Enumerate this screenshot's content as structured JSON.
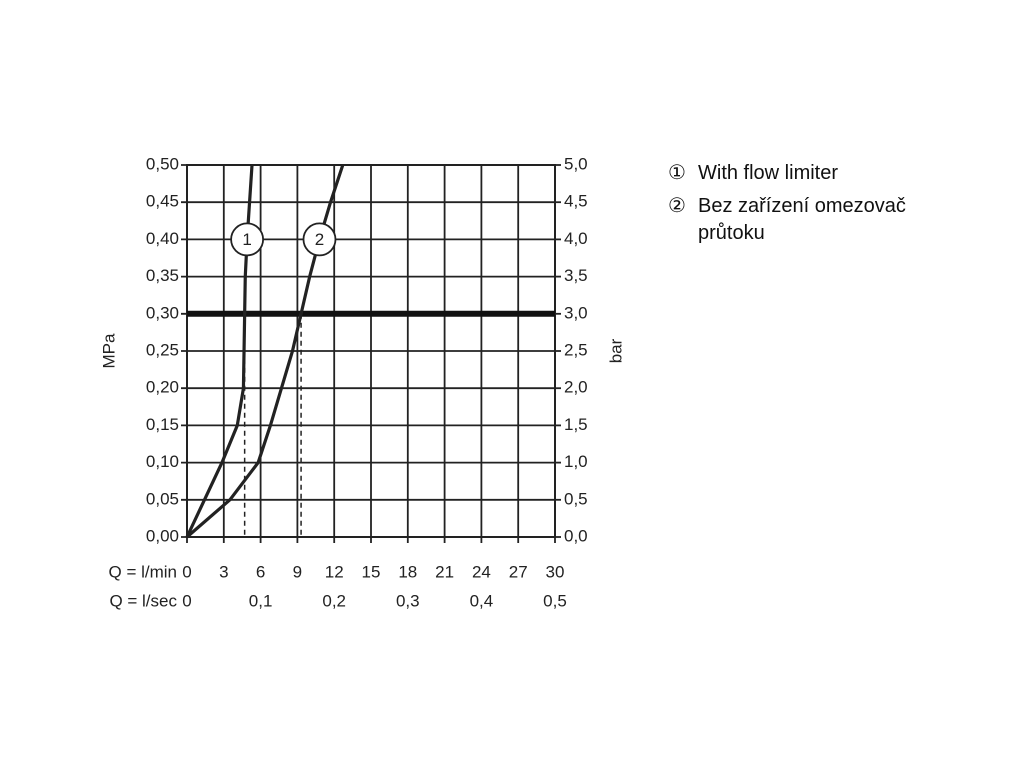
{
  "chart_data": {
    "type": "line",
    "y_label": "MPa",
    "y2_label": "bar",
    "x_label": "Q = l/min",
    "x2_label": "Q = l/sec",
    "xlim": [
      0,
      30
    ],
    "xticks": [
      0,
      3,
      6,
      9,
      12,
      15,
      18,
      21,
      24,
      27,
      30
    ],
    "x2lim": [
      0,
      0.5
    ],
    "x2ticks": [
      0,
      {
        "value": 0.1,
        "label": "0,1"
      },
      {
        "value": 0.2,
        "label": "0,2"
      },
      {
        "value": 0.3,
        "label": "0,3"
      },
      {
        "value": 0.4,
        "label": "0,4"
      },
      {
        "value": 0.5,
        "label": "0,5"
      }
    ],
    "ylim": [
      0,
      0.5
    ],
    "yticks": [
      {
        "value": 0,
        "label": "0,00"
      },
      {
        "value": 0.05,
        "label": "0,05"
      },
      {
        "value": 0.1,
        "label": "0,10"
      },
      {
        "value": 0.15,
        "label": "0,15"
      },
      {
        "value": 0.2,
        "label": "0,20"
      },
      {
        "value": 0.25,
        "label": "0,25"
      },
      {
        "value": 0.3,
        "label": "0,30"
      },
      {
        "value": 0.35,
        "label": "0,35"
      },
      {
        "value": 0.4,
        "label": "0,40"
      },
      {
        "value": 0.45,
        "label": "0,45"
      },
      {
        "value": 0.5,
        "label": "0,50"
      }
    ],
    "y2lim": [
      0,
      5
    ],
    "y2ticks": [
      {
        "value": 0,
        "label": "0,0"
      },
      {
        "value": 0.5,
        "label": "0,5"
      },
      {
        "value": 1,
        "label": "1,0"
      },
      {
        "value": 1.5,
        "label": "1,5"
      },
      {
        "value": 2,
        "label": "2,0"
      },
      {
        "value": 2.5,
        "label": "2,5"
      },
      {
        "value": 3,
        "label": "3,0"
      },
      {
        "value": 3.5,
        "label": "3,5"
      },
      {
        "value": 4,
        "label": "4,0"
      },
      {
        "value": 4.5,
        "label": "4,5"
      },
      {
        "value": 5,
        "label": "5,0"
      }
    ],
    "grid": true,
    "highlight_y": 0.3,
    "color": "#222222",
    "series": [
      {
        "name": "With flow limiter",
        "symbol": "①",
        "label": "1",
        "label_at": 7,
        "x": [
          0,
          2.85,
          4.1,
          4.6,
          4.65,
          4.7,
          4.75,
          4.9,
          5.1,
          5.3
        ],
        "values": [
          0,
          0.1,
          0.15,
          0.2,
          0.25,
          0.3,
          0.35,
          0.4,
          0.45,
          0.5
        ]
      },
      {
        "name": "Bez zařízení omezovač průtoku",
        "symbol": "②",
        "label": "2",
        "label_at": 8,
        "x": [
          0,
          3.5,
          5.8,
          6.8,
          7.7,
          8.6,
          9.3,
          10.0,
          10.8,
          11.7,
          12.7
        ],
        "values": [
          0,
          0.05,
          0.1,
          0.15,
          0.2,
          0.25,
          0.3,
          0.35,
          0.4,
          0.45,
          0.5
        ]
      }
    ]
  }
}
